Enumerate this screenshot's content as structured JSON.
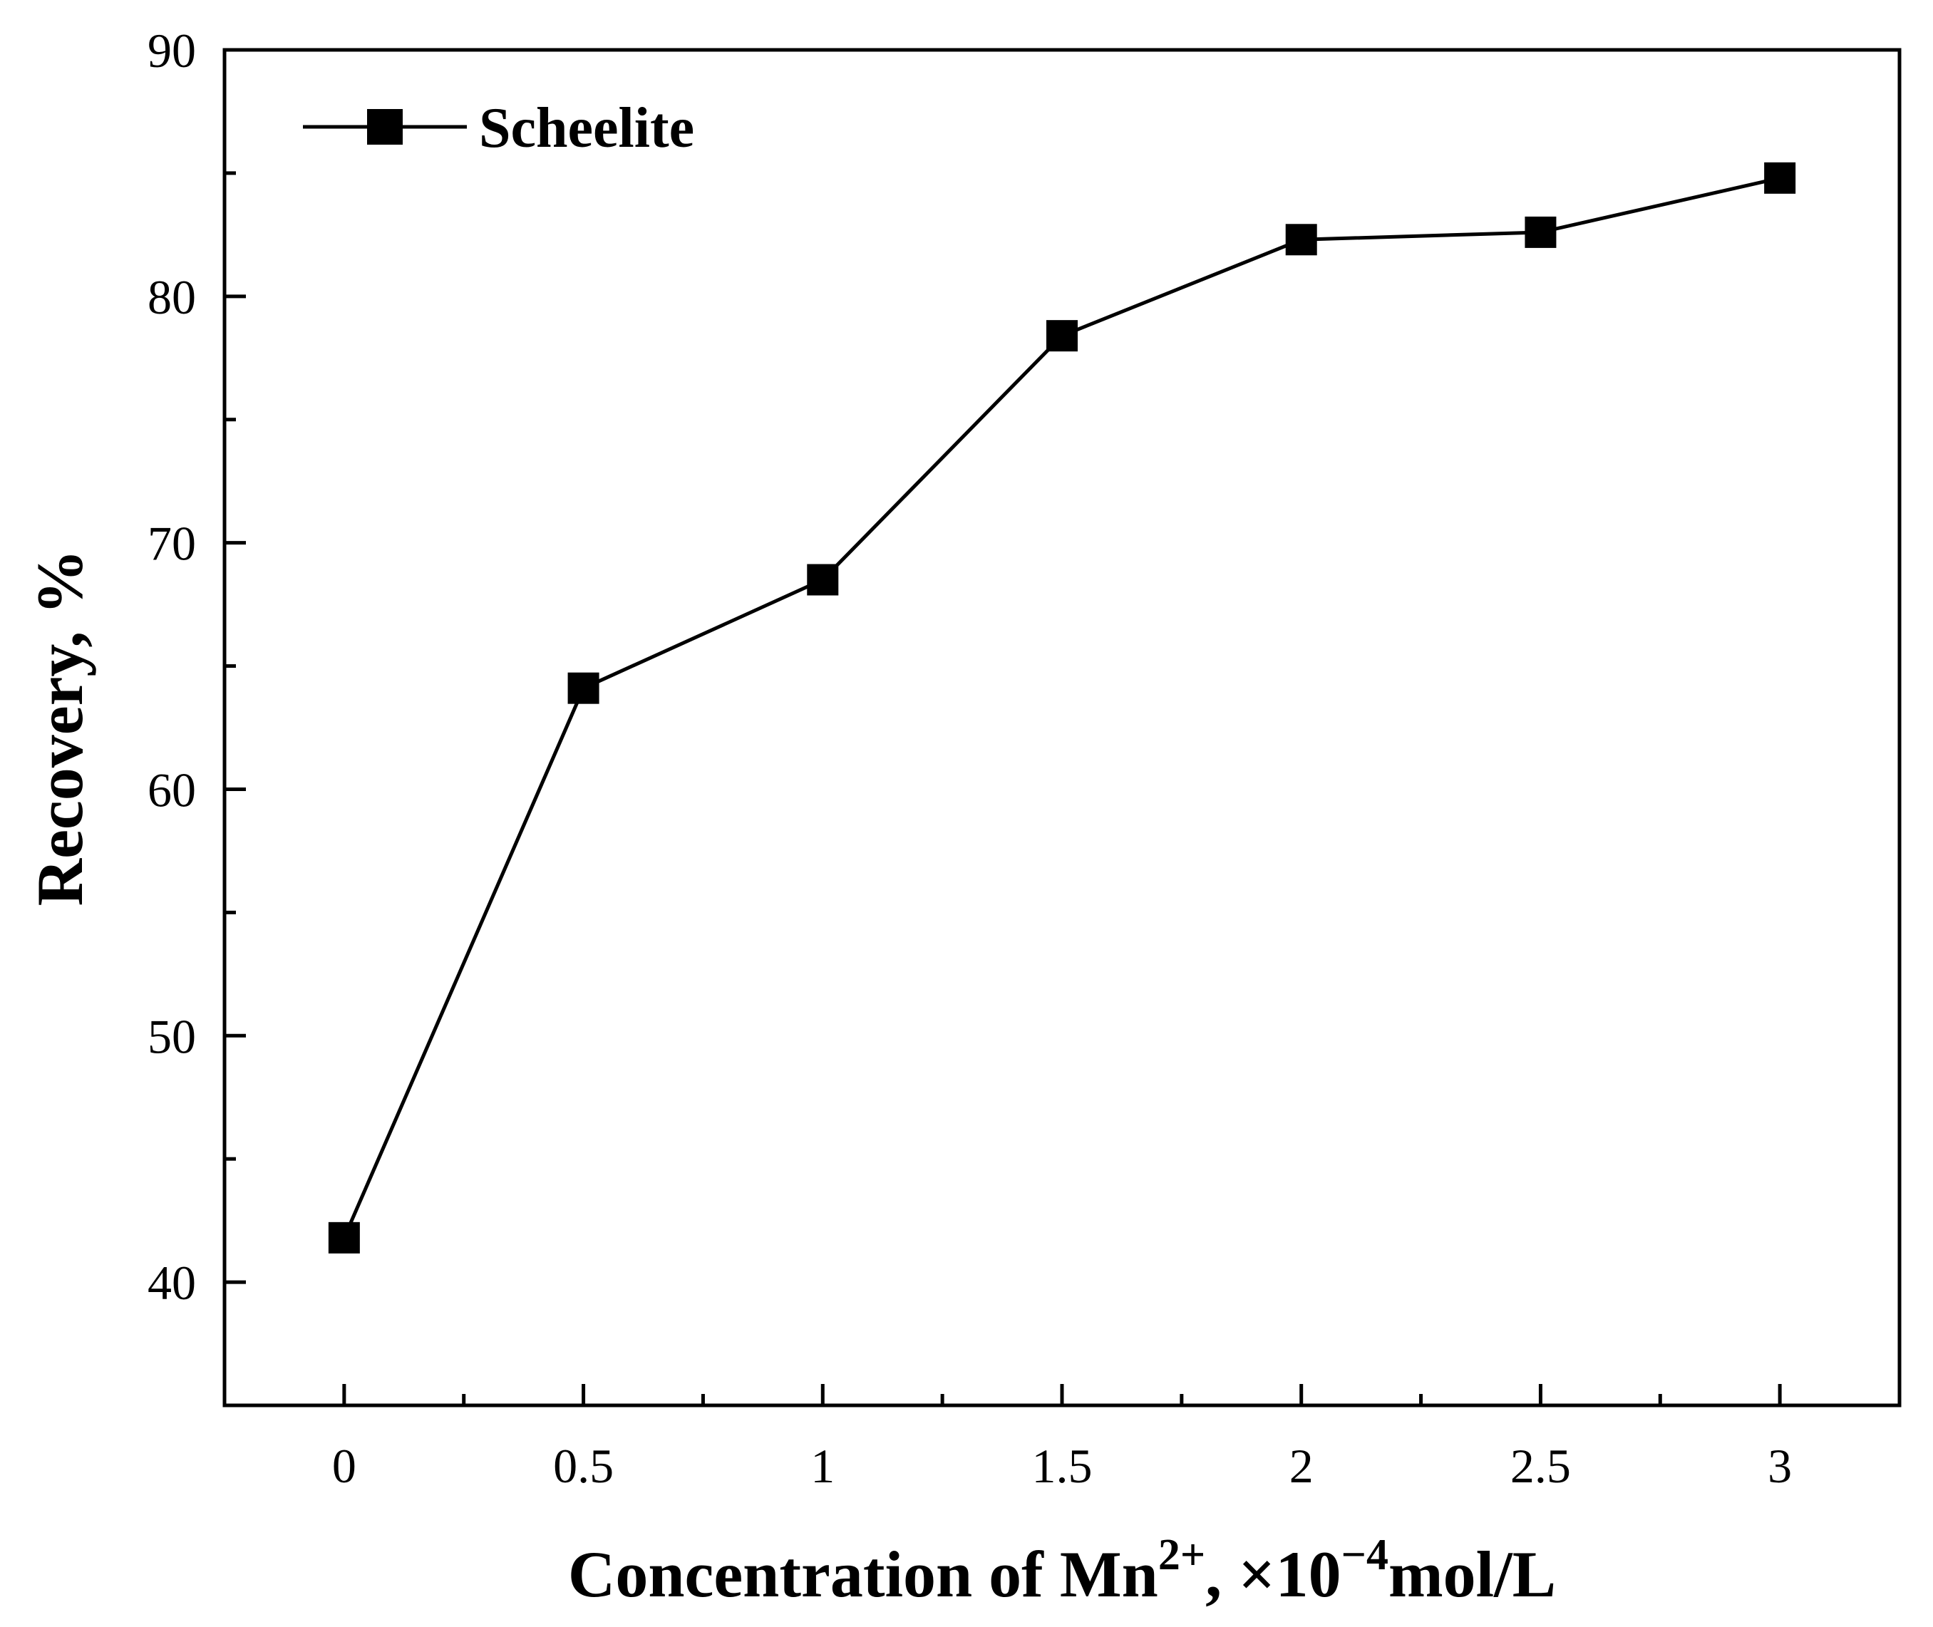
{
  "chart_data": {
    "type": "line",
    "x": [
      0,
      0.5,
      1,
      1.5,
      2,
      2.5,
      3
    ],
    "x_tick_labels": [
      "0",
      "0.5",
      "1",
      "1.5",
      "2",
      "2.5",
      "3"
    ],
    "series": [
      {
        "name": "Scheelite",
        "values": [
          41.8,
          64.1,
          68.5,
          78.4,
          82.3,
          82.6,
          84.8
        ],
        "color": "#000000",
        "marker": "square"
      }
    ],
    "y_tick_values": [
      40,
      50,
      60,
      70,
      80,
      90
    ],
    "y_tick_labels": [
      "40",
      "50",
      "60",
      "70",
      "80",
      "90"
    ],
    "xlabel_main": "Concentration of Mn",
    "xlabel_sup1": "2+",
    "xlabel_mid": ", ×10",
    "xlabel_sup2": "−4",
    "xlabel_end": "mol/L",
    "ylabel": "Recovery, %",
    "xlim": [
      -0.25,
      3.25
    ],
    "ylim": [
      35,
      90
    ],
    "legend_position": "top-left",
    "grid": false
  }
}
